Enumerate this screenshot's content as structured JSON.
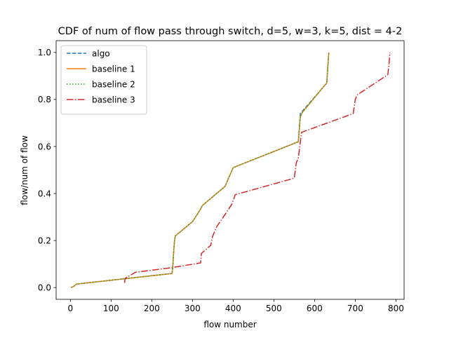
{
  "chart_data": {
    "type": "line",
    "title": "CDF of num of flow pass through switch, d=5, w=3, k=5, dist = 4-2",
    "xlabel": "flow number",
    "ylabel": "flow/num of flow",
    "xlim": [
      -35,
      820
    ],
    "ylim": [
      -0.05,
      1.05
    ],
    "xticks": [
      0,
      100,
      200,
      300,
      400,
      500,
      600,
      700,
      800
    ],
    "yticks": [
      0.0,
      0.2,
      0.4,
      0.6,
      0.8,
      1.0
    ],
    "ytick_labels": [
      "0.0",
      "0.2",
      "0.4",
      "0.6",
      "0.8",
      "1.0"
    ],
    "grid": false,
    "legend_position": "top-left",
    "series": [
      {
        "name": "algo",
        "color": "#1f77b4",
        "dash": "dashed",
        "x": [
          2,
          8,
          15,
          250,
          252,
          254,
          256,
          258,
          300,
          315,
          325,
          380,
          400,
          560,
          565,
          570,
          620,
          630,
          633,
          635
        ],
        "y": [
          0.0,
          0.005,
          0.015,
          0.06,
          0.1,
          0.16,
          0.2,
          0.22,
          0.28,
          0.32,
          0.35,
          0.43,
          0.51,
          0.62,
          0.74,
          0.75,
          0.85,
          0.87,
          0.95,
          1.0
        ]
      },
      {
        "name": "baseline 1",
        "color": "#ff7f0e",
        "dash": "solid",
        "x": [
          2,
          8,
          15,
          250,
          252,
          254,
          256,
          258,
          300,
          315,
          325,
          380,
          400,
          560,
          565,
          570,
          620,
          630,
          633,
          635
        ],
        "y": [
          0.0,
          0.005,
          0.015,
          0.06,
          0.1,
          0.16,
          0.2,
          0.22,
          0.28,
          0.32,
          0.35,
          0.43,
          0.51,
          0.62,
          0.725,
          0.745,
          0.85,
          0.87,
          0.95,
          1.0
        ]
      },
      {
        "name": "baseline 2",
        "color": "#2ca02c",
        "dash": "dotted",
        "x": [
          2,
          8,
          15,
          250,
          252,
          254,
          256,
          258,
          300,
          315,
          325,
          380,
          400,
          560,
          565,
          570,
          620,
          630,
          633,
          635
        ],
        "y": [
          0.0,
          0.005,
          0.015,
          0.06,
          0.1,
          0.16,
          0.2,
          0.22,
          0.28,
          0.32,
          0.35,
          0.43,
          0.51,
          0.62,
          0.725,
          0.745,
          0.85,
          0.87,
          0.95,
          1.0
        ]
      },
      {
        "name": "baseline 3",
        "color": "#d62728",
        "dash": "dashdot",
        "x": [
          133,
          135,
          160,
          250,
          320,
          322,
          345,
          350,
          360,
          370,
          380,
          395,
          400,
          405,
          550,
          555,
          560,
          565,
          568,
          695,
          700,
          705,
          780,
          783,
          785
        ],
        "y": [
          0.02,
          0.04,
          0.065,
          0.085,
          0.105,
          0.145,
          0.18,
          0.22,
          0.26,
          0.285,
          0.31,
          0.35,
          0.37,
          0.395,
          0.465,
          0.53,
          0.55,
          0.62,
          0.66,
          0.74,
          0.8,
          0.82,
          0.905,
          0.95,
          1.0
        ]
      }
    ]
  }
}
